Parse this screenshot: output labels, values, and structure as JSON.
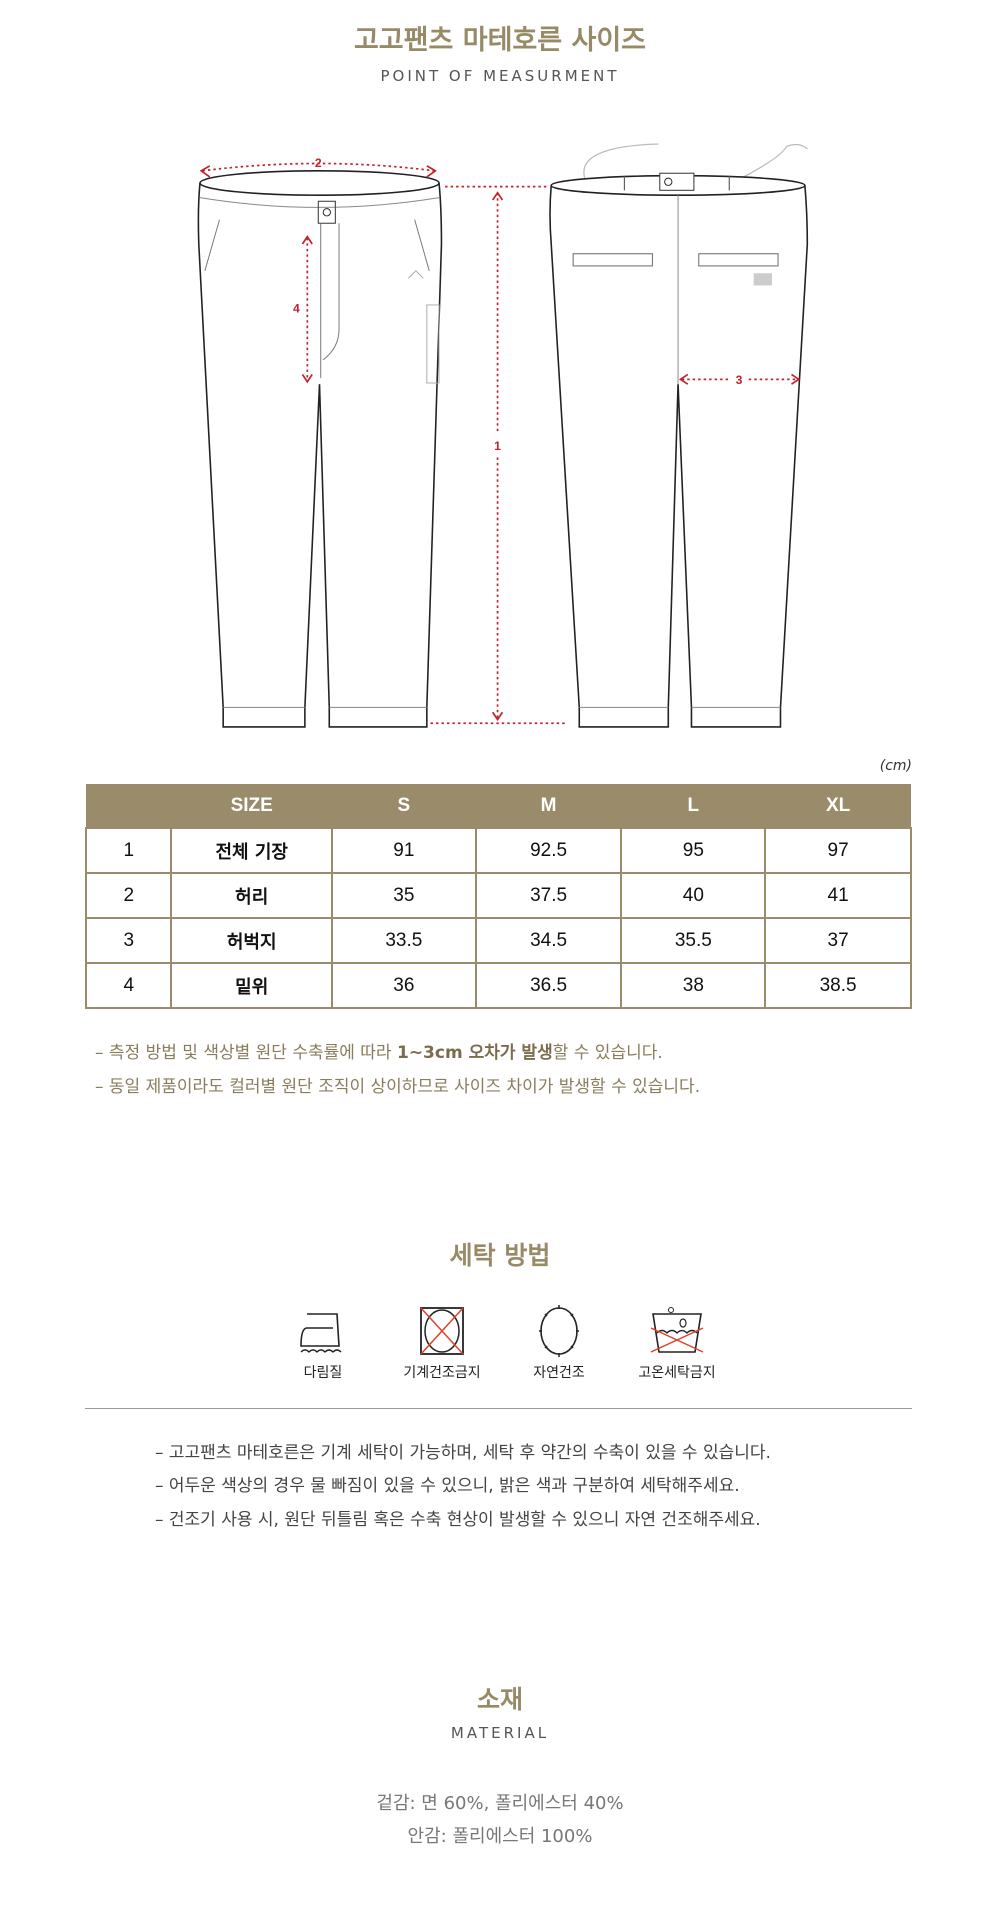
{
  "size_section": {
    "title": "고고팬츠 마테호른 사이즈",
    "subtitle": "POINT OF MEASURMENT",
    "diagram_labels": [
      "1",
      "2",
      "3",
      "4"
    ],
    "unit": "(cm)"
  },
  "size_table": {
    "headers": [
      "",
      "SIZE",
      "S",
      "M",
      "L",
      "XL"
    ],
    "rows": [
      {
        "no": "1",
        "label": "전체 기장",
        "values": [
          "91",
          "92.5",
          "95",
          "97"
        ]
      },
      {
        "no": "2",
        "label": "허리",
        "values": [
          "35",
          "37.5",
          "40",
          "41"
        ]
      },
      {
        "no": "3",
        "label": "허벅지",
        "values": [
          "33.5",
          "34.5",
          "35.5",
          "37"
        ]
      },
      {
        "no": "4",
        "label": "밑위",
        "values": [
          "36",
          "36.5",
          "38",
          "38.5"
        ]
      }
    ]
  },
  "size_notes": [
    {
      "pre": "– 측정 방법 및 색상별 원단 수축률에 따라 ",
      "bold": "1~3cm 오차가 발생",
      "post": "할 수 있습니다."
    },
    {
      "pre": "– 동일 제품이라도 컬러별 원단 조직이 상이하므로 사이즈 차이가 발생할 수 있습니다.",
      "bold": "",
      "post": ""
    }
  ],
  "washing": {
    "title": "세탁 방법",
    "icons": [
      {
        "icon": "iron-icon",
        "label": "다림질"
      },
      {
        "icon": "no-tumble-dry-icon",
        "label": "기계건조금지"
      },
      {
        "icon": "natural-dry-icon",
        "label": "자연건조"
      },
      {
        "icon": "no-hot-wash-icon",
        "label": "고온세탁금지"
      }
    ],
    "notes": [
      "– 고고팬츠 마테호른은 기계 세탁이 가능하며, 세탁 후 약간의 수축이 있을 수 있습니다.",
      "– 어두운 색상의 경우 물 빠짐이 있을 수 있으니, 밝은 색과 구분하여 세탁해주세요.",
      "– 건조기 사용 시, 원단 뒤틀림 혹은 수축 현상이 발생할 수 있으니 자연 건조해주세요."
    ]
  },
  "material": {
    "title": "소재",
    "subtitle": "MATERIAL",
    "lines": [
      "겉감: 면 60%, 폴리에스터 40%",
      "안감: 폴리에스터 100%"
    ]
  },
  "colors": {
    "accent": "#9a8c6a",
    "measure_red": "#c0242b",
    "cross_red": "#e0402a"
  }
}
